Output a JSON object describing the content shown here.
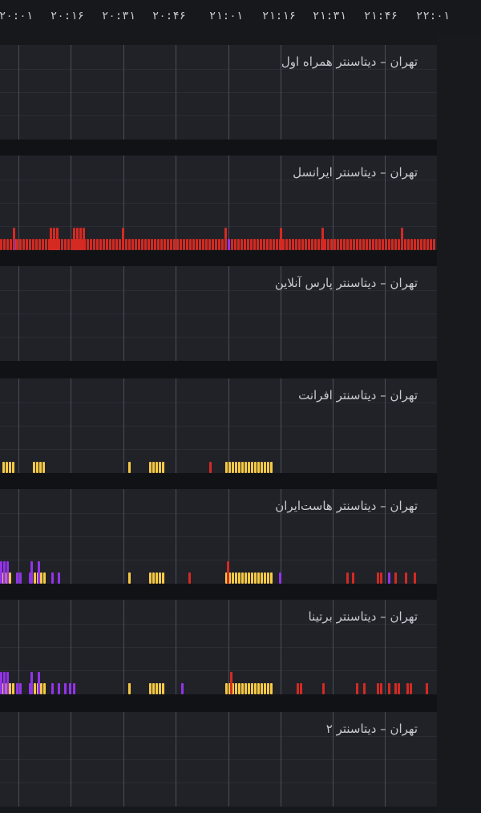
{
  "axis": {
    "ticks": [
      "۲۰:۰۱",
      "۲۰:۱۶",
      "۲۰:۳۱",
      "۲۰:۴۶",
      "۲۱:۰۱",
      "۲۱:۱۶",
      "۲۱:۳۱",
      "۲۱:۴۶",
      "۲۲:۰۱"
    ]
  },
  "colors": {
    "background": "#17181c",
    "panel": "#212228",
    "red": "#d42a22",
    "yellow": "#f6c945",
    "purple": "#9333ea",
    "pink": "#f04fb0",
    "blue": "#3b82f6"
  },
  "panels": [
    {
      "title": "تهران – دیتاسنتر همراه اول"
    },
    {
      "title": "تهران – دیتاسنتر ایرانسل"
    },
    {
      "title": "تهران – دیتاسنتر پارس آنلاین"
    },
    {
      "title": "تهران – دیتاسنتر افرانت"
    },
    {
      "title": "تهران – دیتاسنتر هاست‌ایران"
    },
    {
      "title": "تهران – دیتاسنتر برتینا"
    },
    {
      "title": "تهران – دیتاسنتر ۲"
    }
  ]
}
